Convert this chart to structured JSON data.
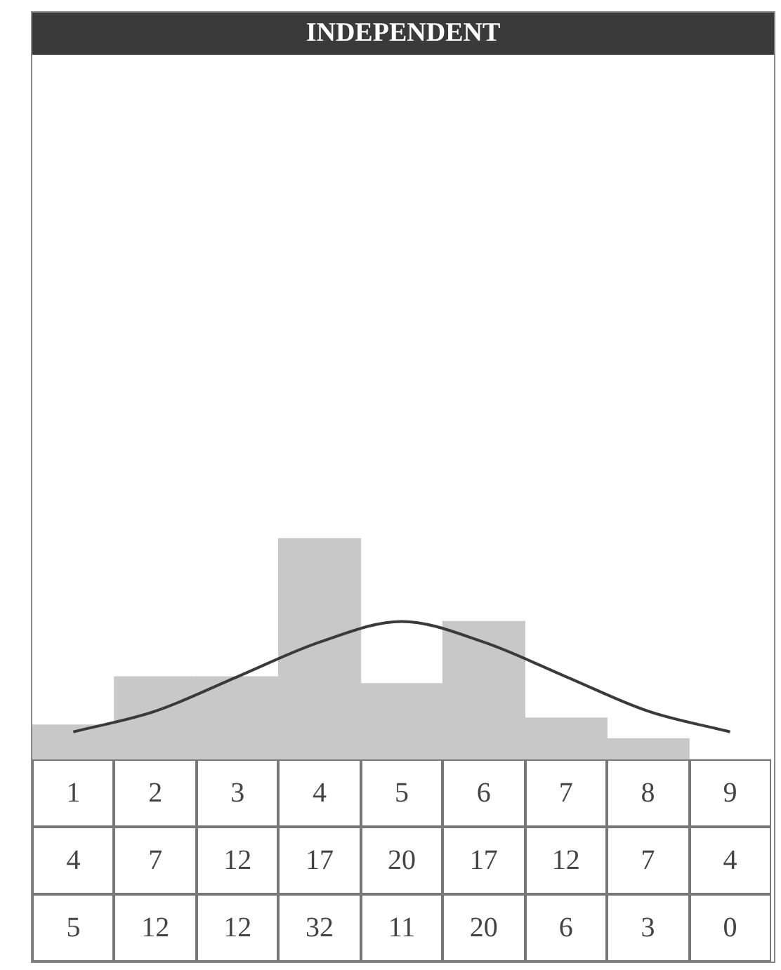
{
  "chart_data": {
    "type": "bar",
    "title": "INDEPENDENT",
    "categories": [
      "1",
      "2",
      "3",
      "4",
      "5",
      "6",
      "7",
      "8",
      "9"
    ],
    "series": [
      {
        "color": "#c8c8c8",
        "values": [
          5,
          12,
          12,
          32,
          11,
          20,
          6,
          3,
          0
        ]
      },
      {
        "type": "line",
        "color": "#3a3a3a",
        "values": [
          4,
          7,
          12,
          17,
          20,
          17,
          12,
          7,
          4
        ]
      }
    ],
    "data_labels": true,
    "legend": false,
    "marker": "none"
  }
}
